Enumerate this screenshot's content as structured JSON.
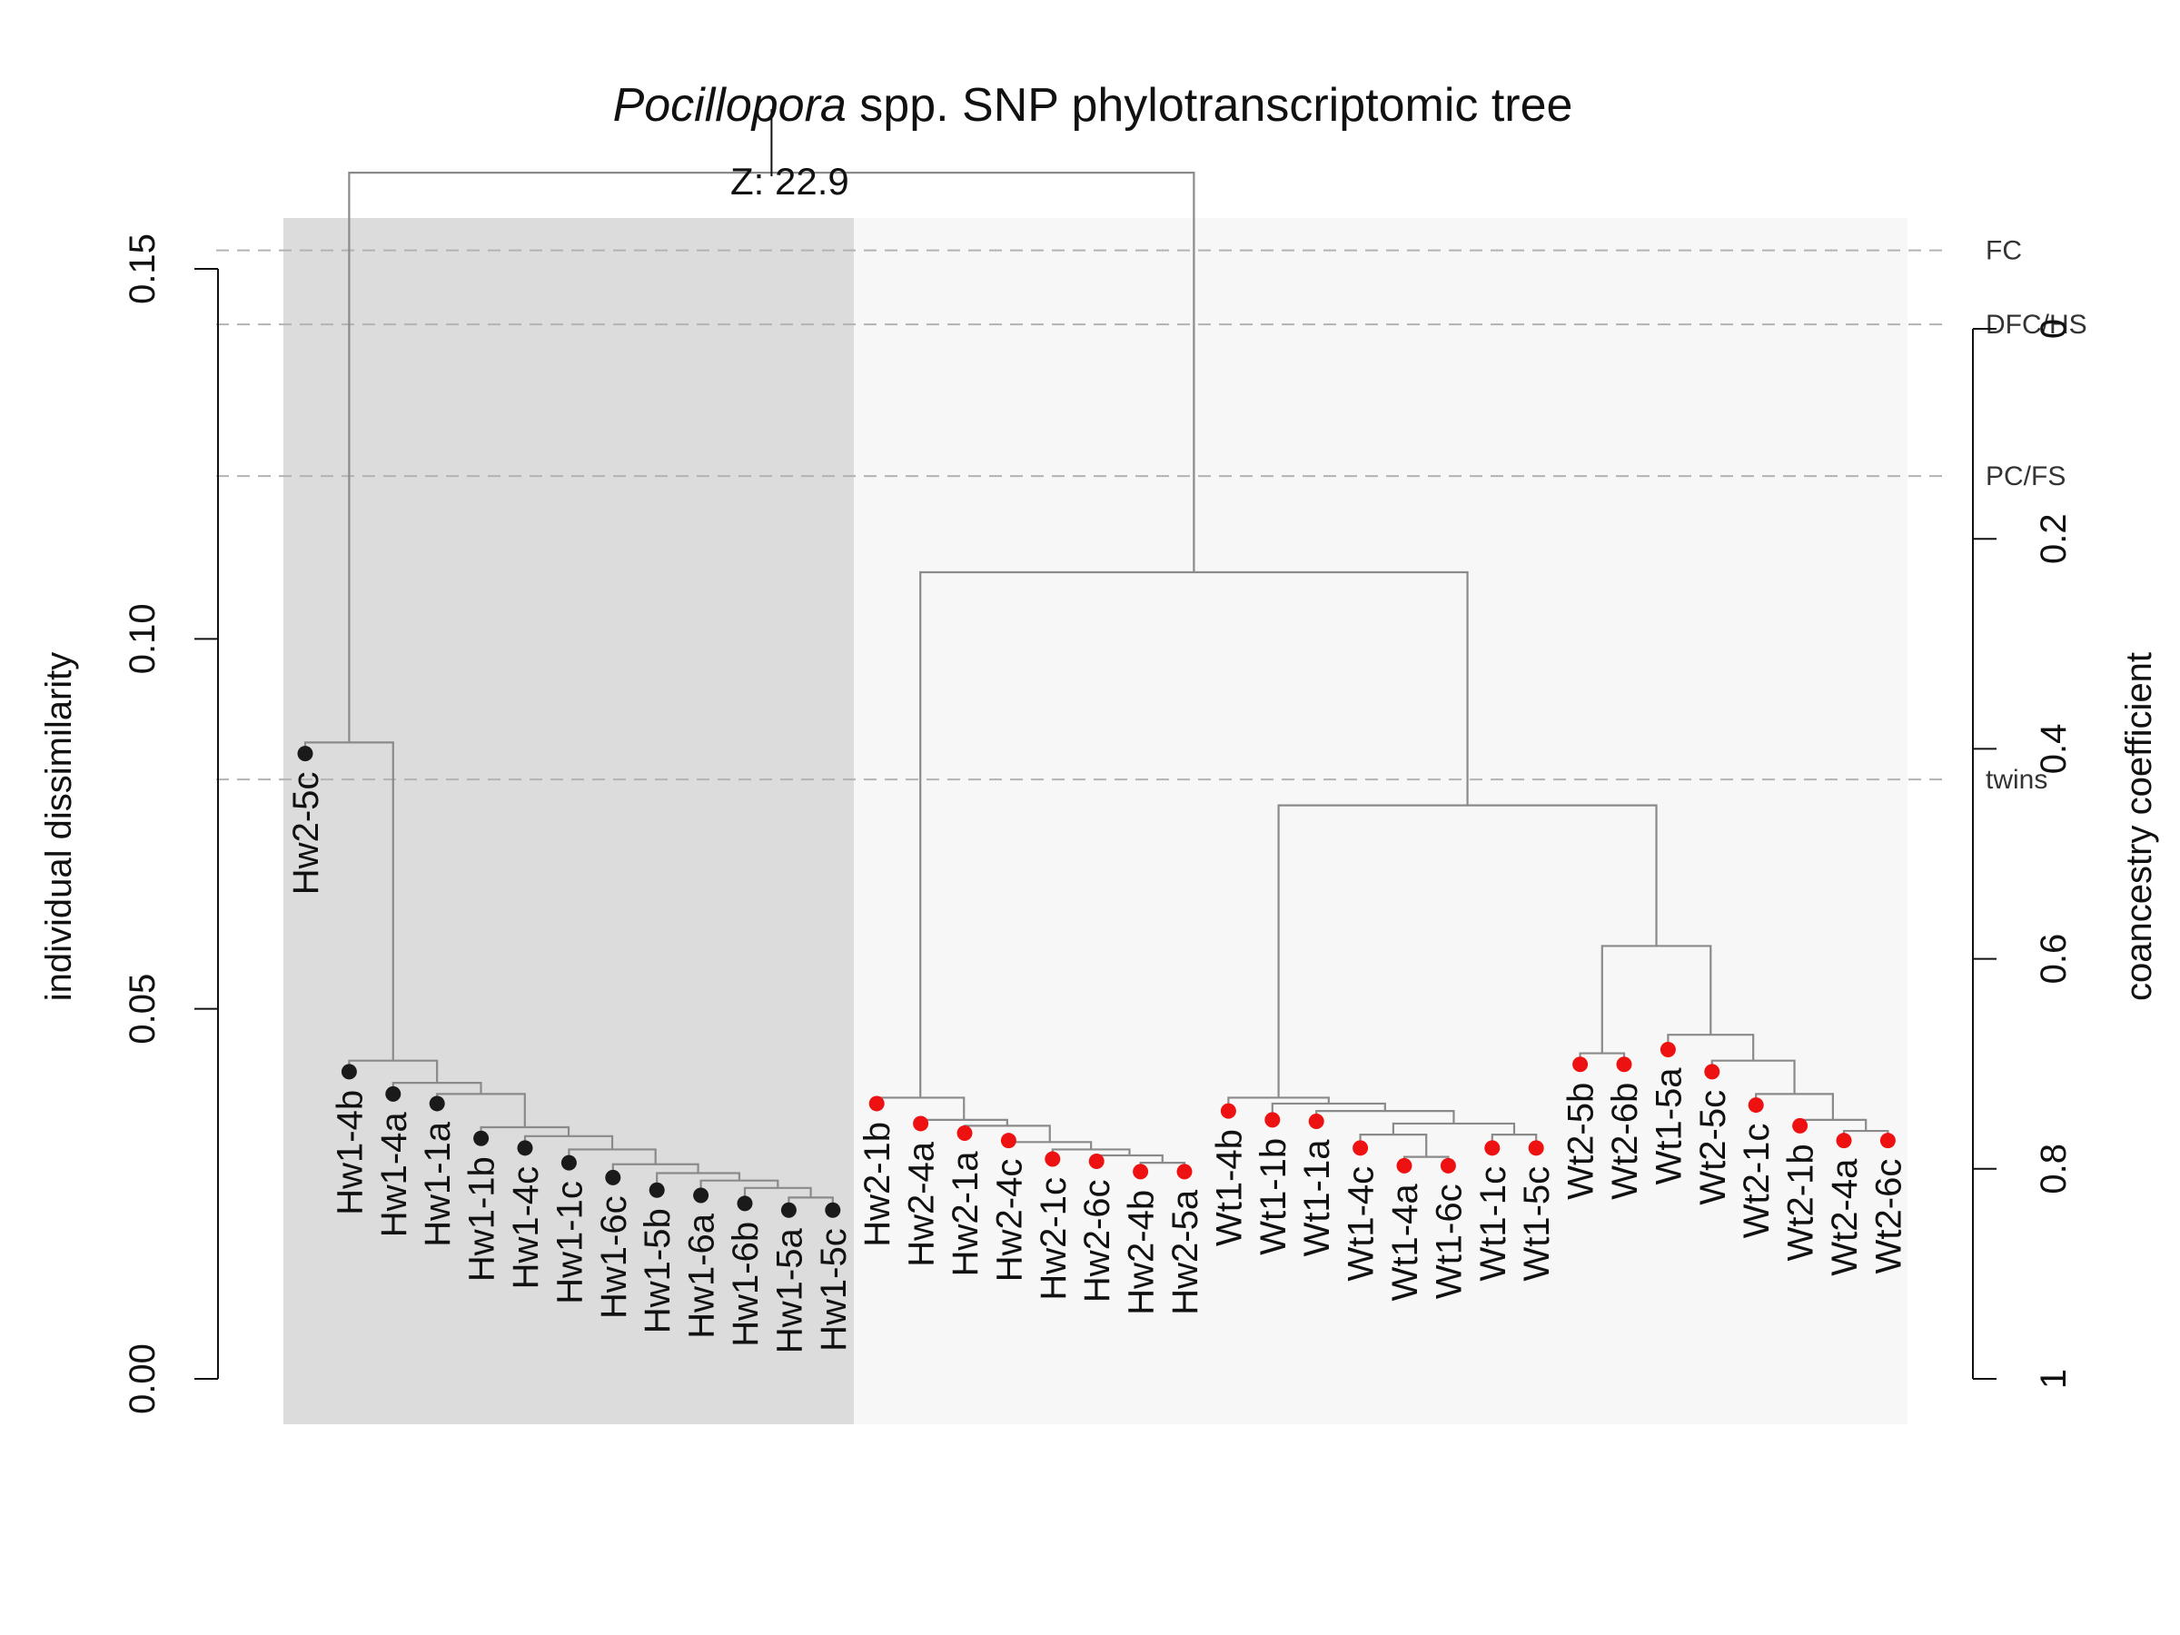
{
  "chart_data": {
    "type": "dendrogram",
    "title": "spp. SNP phylotranscriptomic tree",
    "title_italic": "Pocillopora",
    "ylabel": "individual dissimilarity",
    "ylabel_right": "coancestry coefficient",
    "ylim": [
      0,
      0.165
    ],
    "yticks": [
      0.0,
      0.05,
      0.1,
      0.15
    ],
    "ytick_labels": [
      "0.00",
      "0.05",
      "0.10",
      "0.15"
    ],
    "right_ticks": [
      0,
      0.2,
      0.4,
      0.6,
      0.8,
      1
    ],
    "right_tick_labels": [
      "0",
      "0.2",
      "0.4",
      "0.6",
      "0.8",
      "1"
    ],
    "right_axis_range": [
      0,
      1
    ],
    "cut_lines": [
      {
        "label": "FC",
        "y": 0.1525
      },
      {
        "label": "DFC/HS",
        "y": 0.1425
      },
      {
        "label": "PC/FS",
        "y": 0.122
      },
      {
        "label": "twins",
        "y": 0.081
      }
    ],
    "root_annotation": "Z: 22.9",
    "root_height": 0.1625,
    "clusters": [
      {
        "name": "cluster-1",
        "color": "#dcdcdc",
        "leaves": "Hw2-5c to Hw1-5c"
      },
      {
        "name": "cluster-2",
        "color": "#f7f7f7",
        "leaves": "Hw2-1b to Wt2-6c"
      }
    ],
    "leaves": [
      {
        "label": "Hw2-5c",
        "height": 0.0845,
        "color": "#1a1a1a"
      },
      {
        "label": "Hw1-4b",
        "height": 0.0415,
        "color": "#1a1a1a"
      },
      {
        "label": "Hw1-4a",
        "height": 0.0385,
        "color": "#1a1a1a"
      },
      {
        "label": "Hw1-1a",
        "height": 0.0372,
        "color": "#1a1a1a"
      },
      {
        "label": "Hw1-1b",
        "height": 0.0325,
        "color": "#1a1a1a"
      },
      {
        "label": "Hw1-4c",
        "height": 0.0312,
        "color": "#1a1a1a"
      },
      {
        "label": "Hw1-1c",
        "height": 0.0292,
        "color": "#1a1a1a"
      },
      {
        "label": "Hw1-6c",
        "height": 0.0272,
        "color": "#1a1a1a"
      },
      {
        "label": "Hw1-5b",
        "height": 0.0255,
        "color": "#1a1a1a"
      },
      {
        "label": "Hw1-6a",
        "height": 0.0248,
        "color": "#1a1a1a"
      },
      {
        "label": "Hw1-6b",
        "height": 0.0237,
        "color": "#1a1a1a"
      },
      {
        "label": "Hw1-5a",
        "height": 0.0228,
        "color": "#1a1a1a"
      },
      {
        "label": "Hw1-5c",
        "height": 0.0228,
        "color": "#1a1a1a"
      },
      {
        "label": "Hw2-1b",
        "height": 0.0372,
        "color": "#ee1111"
      },
      {
        "label": "Hw2-4a",
        "height": 0.0345,
        "color": "#ee1111"
      },
      {
        "label": "Hw2-1a",
        "height": 0.0332,
        "color": "#ee1111"
      },
      {
        "label": "Hw2-4c",
        "height": 0.0322,
        "color": "#ee1111"
      },
      {
        "label": "Hw2-1c",
        "height": 0.0297,
        "color": "#ee1111"
      },
      {
        "label": "Hw2-6c",
        "height": 0.0294,
        "color": "#ee1111"
      },
      {
        "label": "Hw2-4b",
        "height": 0.028,
        "color": "#ee1111"
      },
      {
        "label": "Hw2-5a",
        "height": 0.028,
        "color": "#ee1111"
      },
      {
        "label": "Wt1-4b",
        "height": 0.0362,
        "color": "#ee1111"
      },
      {
        "label": "Wt1-1b",
        "height": 0.035,
        "color": "#ee1111"
      },
      {
        "label": "Wt1-1a",
        "height": 0.0348,
        "color": "#ee1111"
      },
      {
        "label": "Wt1-4c",
        "height": 0.0312,
        "color": "#ee1111"
      },
      {
        "label": "Wt1-4a",
        "height": 0.0288,
        "color": "#ee1111"
      },
      {
        "label": "Wt1-6c",
        "height": 0.0288,
        "color": "#ee1111"
      },
      {
        "label": "Wt1-1c",
        "height": 0.0312,
        "color": "#ee1111"
      },
      {
        "label": "Wt1-5c",
        "height": 0.0312,
        "color": "#ee1111"
      },
      {
        "label": "Wt2-5b",
        "height": 0.0425,
        "color": "#ee1111"
      },
      {
        "label": "Wt2-6b",
        "height": 0.0425,
        "color": "#ee1111"
      },
      {
        "label": "Wt1-5a",
        "height": 0.0445,
        "color": "#ee1111"
      },
      {
        "label": "Wt2-5c",
        "height": 0.0415,
        "color": "#ee1111"
      },
      {
        "label": "Wt2-1c",
        "height": 0.037,
        "color": "#ee1111"
      },
      {
        "label": "Wt2-1b",
        "height": 0.0342,
        "color": "#ee1111"
      },
      {
        "label": "Wt2-4a",
        "height": 0.0322,
        "color": "#ee1111"
      },
      {
        "label": "Wt2-6c",
        "height": 0.0322,
        "color": "#ee1111"
      }
    ],
    "merges": [
      {
        "children": [
          11,
          12
        ],
        "height": 0.0245
      },
      {
        "children": [
          10,
          -1
        ],
        "height": 0.0258
      },
      {
        "children": [
          9,
          -2
        ],
        "height": 0.0268
      },
      {
        "children": [
          8,
          -3
        ],
        "height": 0.0278
      },
      {
        "children": [
          7,
          -4
        ],
        "height": 0.029
      },
      {
        "children": [
          6,
          -5
        ],
        "height": 0.031
      },
      {
        "children": [
          5,
          -6
        ],
        "height": 0.0328
      },
      {
        "children": [
          4,
          -7
        ],
        "height": 0.034
      },
      {
        "children": [
          3,
          -8
        ],
        "height": 0.0385
      },
      {
        "children": [
          2,
          -9
        ],
        "height": 0.04
      },
      {
        "children": [
          1,
          -10
        ],
        "height": 0.043
      },
      {
        "children": [
          0,
          -11
        ],
        "height": 0.086
      },
      {
        "children": [
          19,
          20
        ],
        "height": 0.0292
      },
      {
        "children": [
          18,
          -13
        ],
        "height": 0.0302
      },
      {
        "children": [
          17,
          -14
        ],
        "height": 0.031
      },
      {
        "children": [
          16,
          -15
        ],
        "height": 0.032
      },
      {
        "children": [
          15,
          -16
        ],
        "height": 0.0342
      },
      {
        "children": [
          14,
          -17
        ],
        "height": 0.035
      },
      {
        "children": [
          13,
          -18
        ],
        "height": 0.038
      },
      {
        "children": [
          25,
          26
        ],
        "height": 0.03
      },
      {
        "children": [
          24,
          -20
        ],
        "height": 0.033
      },
      {
        "children": [
          27,
          28
        ],
        "height": 0.033
      },
      {
        "children": [
          -21,
          -22
        ],
        "height": 0.0345
      },
      {
        "children": [
          23,
          -23
        ],
        "height": 0.0362
      },
      {
        "children": [
          22,
          -24
        ],
        "height": 0.0372
      },
      {
        "children": [
          21,
          -25
        ],
        "height": 0.038
      },
      {
        "children": [
          29,
          30
        ],
        "height": 0.044
      },
      {
        "children": [
          35,
          36
        ],
        "height": 0.0335
      },
      {
        "children": [
          34,
          -28
        ],
        "height": 0.035
      },
      {
        "children": [
          33,
          -29
        ],
        "height": 0.0385
      },
      {
        "children": [
          32,
          -30
        ],
        "height": 0.043
      },
      {
        "children": [
          31,
          -31
        ],
        "height": 0.0465
      },
      {
        "children": [
          -27,
          -32
        ],
        "height": 0.0585
      },
      {
        "children": [
          -26,
          -33
        ],
        "height": 0.0775
      },
      {
        "children": [
          -19,
          -34
        ],
        "height": 0.109
      },
      {
        "children": [
          -12,
          -35
        ],
        "height": 0.163
      }
    ]
  }
}
